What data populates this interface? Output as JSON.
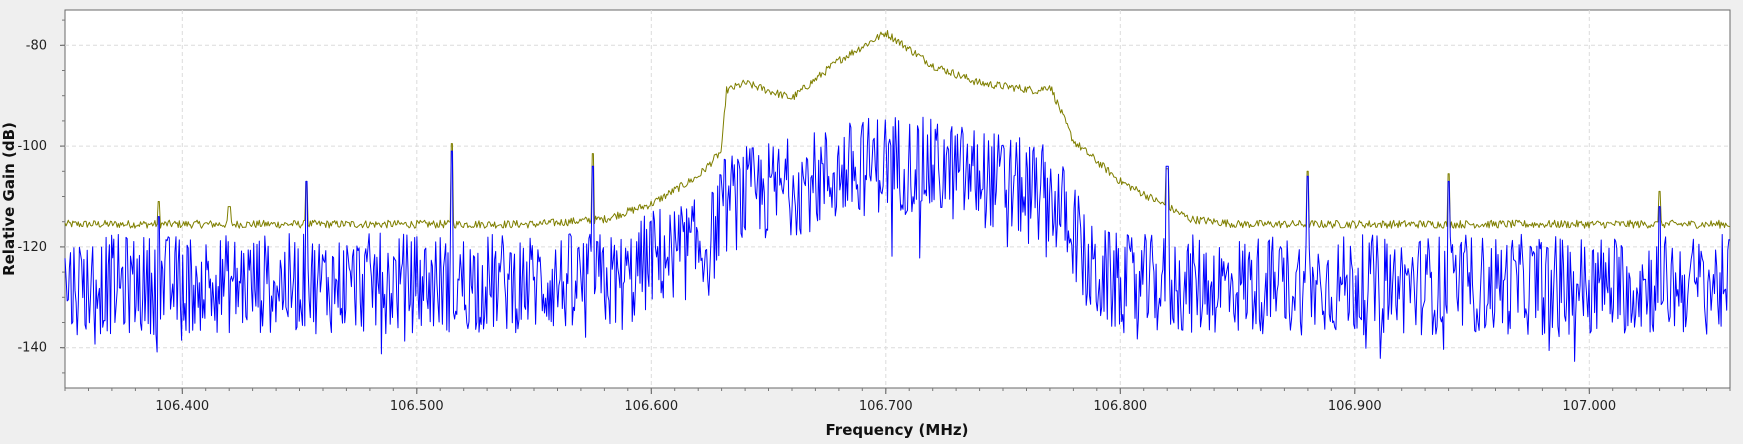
{
  "chart_data": {
    "type": "line",
    "title": "",
    "xlabel": "Frequency (MHz)",
    "ylabel": "Relative Gain (dB)",
    "xlim": [
      106.35,
      107.06
    ],
    "ylim": [
      -148,
      -73
    ],
    "grid": true,
    "legend": "none",
    "x_ticks": [
      106.4,
      106.5,
      106.6,
      106.7,
      106.8,
      106.9,
      107.0
    ],
    "x_tick_labels": [
      "106.400",
      "106.500",
      "106.600",
      "106.700",
      "106.800",
      "106.900",
      "107.000"
    ],
    "y_ticks": [
      -80,
      -100,
      -120,
      -140
    ],
    "y_tick_labels": [
      "-80",
      "-100",
      "-120",
      "-140"
    ],
    "series": [
      {
        "color": "#7f7f00",
        "envelope": [
          [
            106.35,
            -115.5
          ],
          [
            106.55,
            -115.5
          ],
          [
            106.58,
            -114.5
          ],
          [
            106.6,
            -111.5
          ],
          [
            106.62,
            -106
          ],
          [
            106.63,
            -101
          ],
          [
            106.632,
            -89
          ],
          [
            106.64,
            -87.5
          ],
          [
            106.66,
            -90.5
          ],
          [
            106.68,
            -83
          ],
          [
            106.7,
            -77.5
          ],
          [
            106.72,
            -84
          ],
          [
            106.74,
            -87.5
          ],
          [
            106.765,
            -89
          ],
          [
            106.77,
            -88
          ],
          [
            106.78,
            -99
          ],
          [
            106.79,
            -103
          ],
          [
            106.8,
            -107
          ],
          [
            106.82,
            -112
          ],
          [
            106.83,
            -114.5
          ],
          [
            106.85,
            -115.5
          ],
          [
            107.06,
            -115.5
          ]
        ],
        "noise_amplitude_db": 0.8,
        "spikes": [
          [
            106.39,
            -111
          ],
          [
            106.42,
            -112
          ],
          [
            106.453,
            -107
          ],
          [
            106.515,
            -99.5
          ],
          [
            106.575,
            -101.5
          ],
          [
            106.82,
            -104.5
          ],
          [
            106.88,
            -105
          ],
          [
            106.94,
            -105.5
          ],
          [
            107.03,
            -109
          ]
        ]
      },
      {
        "color": "#0000ff",
        "envelope": [
          [
            106.35,
            -127.5
          ],
          [
            106.59,
            -127
          ],
          [
            106.6,
            -122
          ],
          [
            106.625,
            -120
          ],
          [
            106.63,
            -112
          ],
          [
            106.64,
            -110
          ],
          [
            106.66,
            -108
          ],
          [
            106.7,
            -103
          ],
          [
            106.74,
            -106
          ],
          [
            106.77,
            -110
          ],
          [
            106.78,
            -116
          ],
          [
            106.786,
            -125
          ],
          [
            106.8,
            -127.5
          ],
          [
            107.06,
            -127.5
          ]
        ],
        "noise_amplitude_db": 10,
        "spikes": [
          [
            106.39,
            -114
          ],
          [
            106.453,
            -107
          ],
          [
            106.515,
            -101
          ],
          [
            106.575,
            -104
          ],
          [
            106.82,
            -104
          ],
          [
            106.88,
            -106
          ],
          [
            106.94,
            -107
          ],
          [
            107.03,
            -112
          ]
        ]
      }
    ]
  }
}
